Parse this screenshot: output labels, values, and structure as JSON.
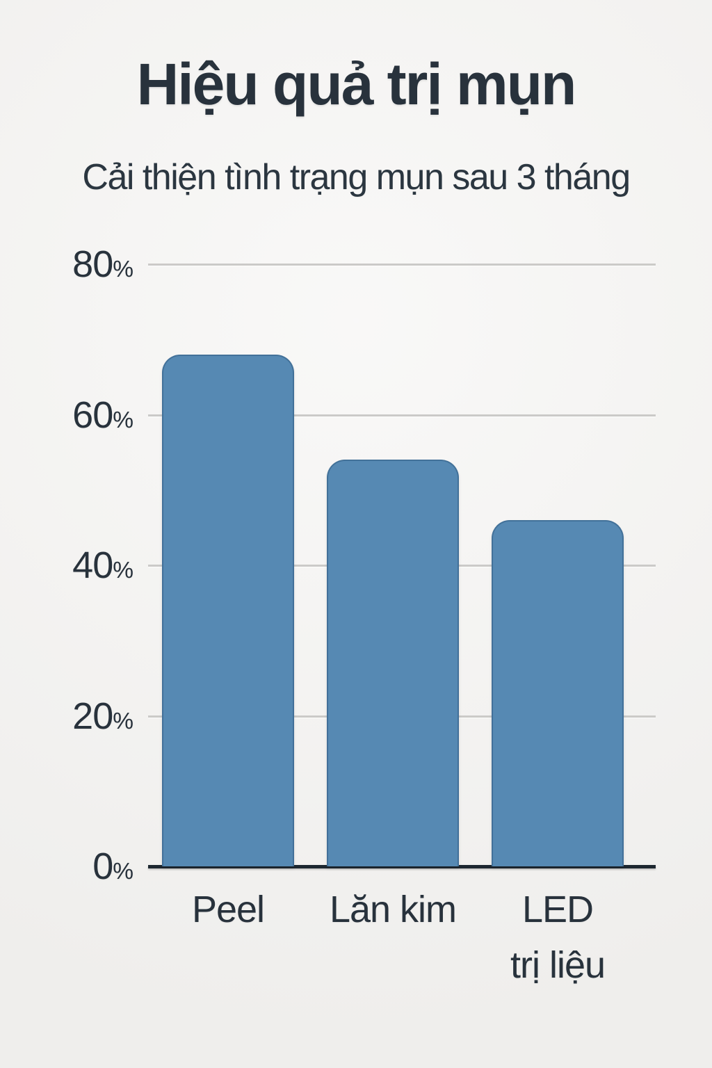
{
  "page": {
    "background_color": "#f3f2f0",
    "text_color": "#28323c"
  },
  "header": {
    "title": "Hiệu quả trị mụn",
    "subtitle": "Cải thiện tình trạng mụn sau 3 tháng"
  },
  "chart_data": {
    "type": "bar",
    "title": "Hiệu quả trị mụn",
    "subtitle": "Cải thiện tình trạng mụn sau 3 tháng",
    "categories": [
      "Peel",
      "Lăn kim",
      "LED trị liệu"
    ],
    "category_lines": [
      [
        "Peel"
      ],
      [
        "Lăn kim"
      ],
      [
        "LED",
        "trị liệu"
      ]
    ],
    "values": [
      68,
      54,
      46
    ],
    "unit": "%",
    "xlabel": "",
    "ylabel": "",
    "y_ticks": [
      80,
      60,
      40,
      20,
      0
    ],
    "ylim": [
      0,
      80
    ],
    "grid": true,
    "legend": false,
    "bar_color": "#5689b3",
    "gridline_color": "#cbcac8",
    "axis_color": "#1d2730"
  }
}
